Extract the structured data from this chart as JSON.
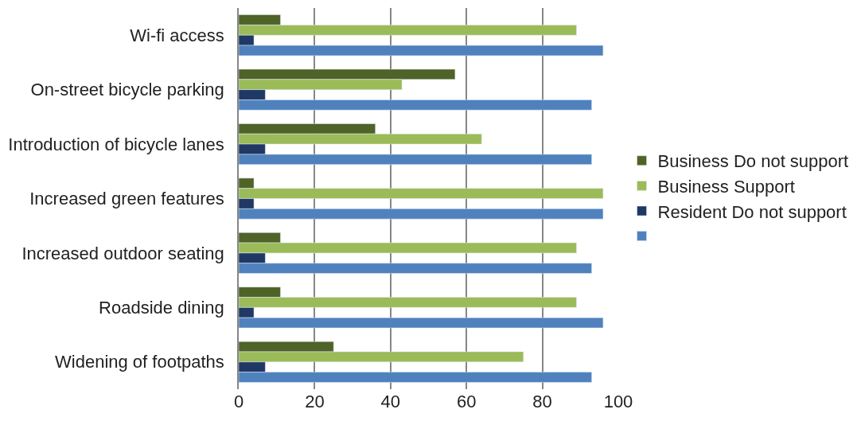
{
  "chart_data": {
    "type": "bar",
    "orientation": "horizontal",
    "categories": [
      "Wi-fi access",
      "On-street bicycle parking",
      "Introduction of bicycle lanes",
      "Increased green features",
      "Increased outdoor seating",
      "Roadside dining",
      "Widening of footpaths"
    ],
    "series": [
      {
        "name": "Business Do not support",
        "color": "#4f6228",
        "values": [
          11,
          57,
          36,
          4,
          11,
          11,
          25
        ]
      },
      {
        "name": "Business Support",
        "color": "#9bbb59",
        "values": [
          89,
          43,
          64,
          96,
          89,
          89,
          75
        ]
      },
      {
        "name": "Resident Do not support",
        "color": "#1f3864",
        "values": [
          4,
          7,
          7,
          4,
          7,
          4,
          7
        ]
      },
      {
        "color": "#4f81bd",
        "values": [
          96,
          93,
          93,
          96,
          93,
          96,
          93
        ]
      }
    ],
    "xlim": [
      0,
      100
    ],
    "xticks": [
      0,
      20,
      40,
      60,
      80,
      100
    ],
    "grid": "x",
    "legend": "right"
  }
}
